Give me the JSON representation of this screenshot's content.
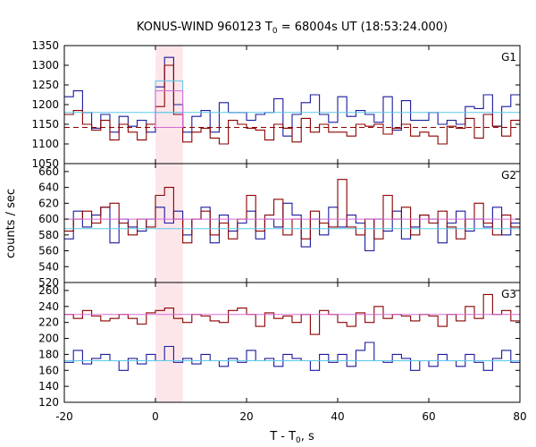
{
  "title": {
    "main": "KONUS-WIND 960123 T",
    "sub": "0",
    "tail": " = 68004s UT (18:53:24.000)"
  },
  "xlabel": {
    "main": "T - T",
    "sub": "0",
    "tail": ", s"
  },
  "ylabel": "counts / sec",
  "colors": {
    "red": "#8b0000",
    "blue": "#1a1a9e",
    "cyan": "#5bc8e8",
    "magenta": "#d86ad8",
    "shade": "#fde6ea"
  },
  "chart_data": {
    "type": "line",
    "x": {
      "lim": [
        -20,
        80
      ],
      "ticks": [
        -20,
        0,
        20,
        40,
        60,
        80
      ]
    },
    "bin_width": 2,
    "bin_starts": [
      -20,
      -18,
      -16,
      -14,
      -12,
      -10,
      -8,
      -6,
      -4,
      -2,
      0,
      2,
      4,
      6,
      8,
      10,
      12,
      14,
      16,
      18,
      20,
      22,
      24,
      26,
      28,
      30,
      32,
      34,
      36,
      38,
      40,
      42,
      44,
      46,
      48,
      50,
      52,
      54,
      56,
      58,
      60,
      62,
      64,
      66,
      68,
      70,
      72,
      74,
      76,
      78
    ],
    "shaded_interval": [
      0,
      6
    ],
    "panels": [
      {
        "label": "G1",
        "ylim": [
          1050,
          1350
        ],
        "yticks": [
          1050,
          1100,
          1150,
          1200,
          1250,
          1300,
          1350
        ],
        "series": [
          {
            "color": "blue",
            "values": [
              1220,
              1235,
              1180,
              1140,
              1175,
              1130,
              1170,
              1145,
              1160,
              1130,
              1245,
              1320,
              1200,
              1130,
              1170,
              1185,
              1130,
              1205,
              1180,
              1180,
              1160,
              1175,
              1180,
              1215,
              1120,
              1175,
              1205,
              1225,
              1175,
              1155,
              1220,
              1170,
              1185,
              1175,
              1155,
              1220,
              1135,
              1210,
              1160,
              1160,
              1180,
              1150,
              1160,
              1150,
              1195,
              1190,
              1225,
              1145,
              1195,
              1225
            ]
          },
          {
            "color": "red",
            "values": [
              1175,
              1185,
              1150,
              1135,
              1160,
              1110,
              1150,
              1130,
              1110,
              1150,
              1195,
              1300,
              1175,
              1105,
              1130,
              1140,
              1115,
              1100,
              1160,
              1150,
              1140,
              1135,
              1110,
              1150,
              1140,
              1105,
              1165,
              1130,
              1150,
              1130,
              1130,
              1120,
              1150,
              1145,
              1150,
              1125,
              1140,
              1150,
              1120,
              1130,
              1120,
              1100,
              1145,
              1140,
              1165,
              1115,
              1175,
              1145,
              1120,
              1160
            ]
          }
        ],
        "levels": [
          {
            "color": "cyan",
            "value": 1180,
            "dashed": false
          },
          {
            "color": "red",
            "value": 1142,
            "dashed": true
          }
        ],
        "highlight_boxes": [
          {
            "color": "cyan",
            "x": [
              0,
              6
            ],
            "y": [
              1180,
              1260
            ]
          },
          {
            "color": "magenta",
            "x": [
              0,
              6
            ],
            "y": [
              1142,
              1235
            ]
          }
        ]
      },
      {
        "label": "G2",
        "ylim": [
          520,
          670
        ],
        "yticks": [
          520,
          540,
          560,
          580,
          600,
          620,
          640,
          660
        ],
        "series": [
          {
            "color": "blue",
            "values": [
              575,
              610,
              590,
              605,
              615,
              570,
              600,
              590,
              585,
              600,
              615,
              595,
              610,
              580,
              600,
              615,
              570,
              605,
              585,
              595,
              610,
              575,
              600,
              590,
              620,
              605,
              565,
              600,
              580,
              615,
              590,
              605,
              595,
              560,
              600,
              585,
              610,
              575,
              590,
              605,
              600,
              570,
              595,
              610,
              585,
              600,
              590,
              615,
              580,
              595
            ]
          },
          {
            "color": "red",
            "values": [
              585,
              600,
              610,
              595,
              615,
              620,
              595,
              580,
              600,
              590,
              630,
              640,
              600,
              570,
              600,
              610,
              580,
              595,
              575,
              600,
              630,
              585,
              605,
              625,
              580,
              600,
              575,
              610,
              595,
              590,
              650,
              590,
              580,
              600,
              575,
              630,
              600,
              615,
              580,
              605,
              595,
              610,
              590,
              575,
              600,
              620,
              595,
              580,
              605,
              590
            ]
          }
        ],
        "levels": [
          {
            "color": "cyan",
            "value": 588,
            "dashed": false
          },
          {
            "color": "magenta",
            "value": 600,
            "dashed": false
          }
        ]
      },
      {
        "label": "G3",
        "ylim": [
          120,
          270
        ],
        "yticks": [
          120,
          140,
          160,
          180,
          200,
          220,
          240,
          260
        ],
        "series": [
          {
            "color": "red",
            "values": [
              230,
              225,
              235,
              228,
              222,
              225,
              230,
              225,
              218,
              232,
              235,
              238,
              225,
              220,
              230,
              228,
              222,
              220,
              235,
              238,
              230,
              215,
              232,
              225,
              228,
              220,
              230,
              205,
              235,
              230,
              220,
              215,
              232,
              220,
              240,
              225,
              230,
              228,
              222,
              230,
              228,
              215,
              230,
              222,
              240,
              225,
              255,
              230,
              235,
              222
            ]
          },
          {
            "color": "blue",
            "values": [
              170,
              185,
              168,
              175,
              180,
              172,
              160,
              175,
              168,
              180,
              172,
              190,
              170,
              175,
              168,
              180,
              172,
              165,
              175,
              170,
              185,
              172,
              175,
              165,
              180,
              175,
              172,
              160,
              180,
              170,
              180,
              165,
              185,
              195,
              172,
              170,
              180,
              175,
              160,
              172,
              165,
              180,
              172,
              165,
              180,
              170,
              160,
              175,
              185,
              170
            ]
          }
        ],
        "levels": [
          {
            "color": "cyan",
            "value": 172,
            "dashed": false
          },
          {
            "color": "magenta",
            "value": 230,
            "dashed": false
          }
        ]
      }
    ]
  }
}
